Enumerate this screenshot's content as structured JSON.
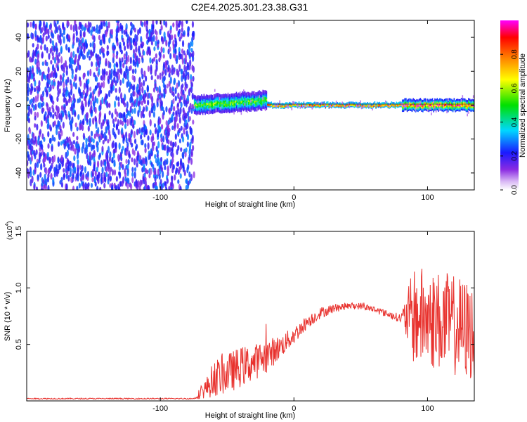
{
  "figure_title": "C2E4.2025.301.23.38.G31",
  "chart_data": [
    {
      "type": "heatmap",
      "xlabel": "Height of straight line (km)",
      "ylabel": "Frequency (Hz)",
      "xlim": [
        -200,
        135
      ],
      "ylim": [
        -50,
        50
      ],
      "x_ticks": [
        -100,
        0,
        100
      ],
      "x_tick_labels": [
        "-100",
        "0",
        "100"
      ],
      "y_ticks": [
        -40,
        -20,
        0,
        20,
        40
      ],
      "y_tick_labels": [
        "-40",
        "-20",
        "0",
        "20",
        "40"
      ],
      "colorbar": {
        "label": "Normalized spectral amplitude",
        "range": [
          0,
          1
        ],
        "ticks": [
          0.0,
          0.2,
          0.4,
          0.6,
          0.8
        ],
        "tick_labels": [
          "0.0",
          "0.2",
          "0.4",
          "0.6",
          "0.8"
        ],
        "colors": [
          "#ffffff",
          "#d9b8f5",
          "#8a2be2",
          "#1a1aff",
          "#00d7ff",
          "#00e000",
          "#ffff00",
          "#ff8000",
          "#ff0000",
          "#ff00ff"
        ]
      },
      "regions": [
        {
          "x_range": [
            -200,
            -75
          ],
          "description_level": "noise",
          "freq_range": [
            -50,
            50
          ],
          "amplitude": [
            0.1,
            0.3
          ]
        },
        {
          "x_range": [
            -75,
            -20
          ],
          "freq_center": [
            0,
            3
          ],
          "freq_width": 10,
          "amplitude": [
            0.3,
            0.6
          ]
        },
        {
          "x_range": [
            -20,
            80
          ],
          "freq_center": 0,
          "freq_width": 2,
          "amplitude": [
            0.7,
            1.0
          ]
        },
        {
          "x_range": [
            80,
            135
          ],
          "freq_center": 0,
          "freq_width": 6,
          "amplitude": [
            0.4,
            0.95
          ]
        }
      ]
    },
    {
      "type": "line",
      "xlabel": "Height of straight line (km)",
      "ylabel": "SNR (10 * v/v)",
      "y_scale_label": "(x10",
      "y_scale_exp": "4",
      "y_scale_close": ")",
      "xlim": [
        -200,
        135
      ],
      "ylim": [
        0,
        1.5
      ],
      "x_ticks": [
        -100,
        0,
        100
      ],
      "x_tick_labels": [
        "-100",
        "0",
        "100"
      ],
      "y_ticks": [
        0.5,
        1.0,
        1.5
      ],
      "y_tick_labels": [
        "0.5",
        "1.0",
        "1.5"
      ],
      "color": "#e8322e",
      "envelope_x": [
        -200,
        -75,
        -65,
        -60,
        -50,
        -40,
        -30,
        -20,
        -10,
        0,
        10,
        20,
        30,
        40,
        50,
        60,
        70,
        80,
        90,
        100,
        110,
        120,
        135
      ],
      "envelope_mean": [
        0.02,
        0.02,
        0.12,
        0.2,
        0.24,
        0.3,
        0.34,
        0.4,
        0.48,
        0.58,
        0.7,
        0.78,
        0.82,
        0.84,
        0.84,
        0.81,
        0.77,
        0.73,
        0.75,
        0.73,
        0.7,
        0.67,
        0.6
      ],
      "envelope_noise": [
        0.005,
        0.005,
        0.1,
        0.16,
        0.18,
        0.18,
        0.16,
        0.15,
        0.1,
        0.08,
        0.06,
        0.05,
        0.04,
        0.03,
        0.03,
        0.03,
        0.03,
        0.04,
        0.45,
        0.45,
        0.45,
        0.45,
        0.45
      ]
    }
  ]
}
